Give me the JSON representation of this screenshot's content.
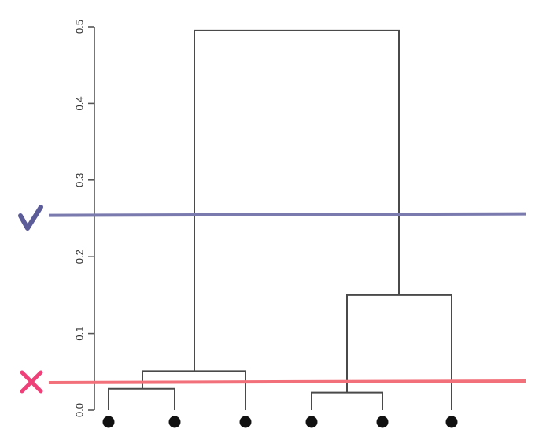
{
  "dendrogram": {
    "y_axis": {
      "range": [
        0.0,
        0.5
      ],
      "ticks": [
        {
          "value": 0.0,
          "label": "0.0"
        },
        {
          "value": 0.1,
          "label": "0.1"
        },
        {
          "value": 0.2,
          "label": "0.2"
        },
        {
          "value": 0.3,
          "label": "0.3"
        },
        {
          "value": 0.4,
          "label": "0.4"
        },
        {
          "value": 0.5,
          "label": "0.5"
        }
      ]
    },
    "leaves": 6,
    "merges": [
      {
        "left_leaf": 1,
        "right_leaf": 2,
        "height": 0.028
      },
      {
        "left_leaf": 4,
        "right_leaf": 5,
        "height": 0.023
      },
      {
        "children": [
          "merge-1-2",
          "leaf-3"
        ],
        "height": 0.051
      },
      {
        "children": [
          "merge-4-5",
          "leaf-6"
        ],
        "height": 0.15
      },
      {
        "children": [
          "cluster-left",
          "cluster-right"
        ],
        "height": 0.495
      }
    ],
    "cut_lines": [
      {
        "height": 0.255,
        "verdict": "good",
        "mark": "check-icon",
        "color": "#7a7aaf"
      },
      {
        "height": 0.037,
        "verdict": "bad",
        "mark": "cross-icon",
        "color": "#f2707a"
      }
    ],
    "colors": {
      "tree": "#4a4a4a",
      "axis": "#555555",
      "good_cut": "#7a7aaf",
      "good_mark": "#5c5c99",
      "bad_cut": "#f2707a",
      "bad_mark": "#f0407a"
    }
  }
}
